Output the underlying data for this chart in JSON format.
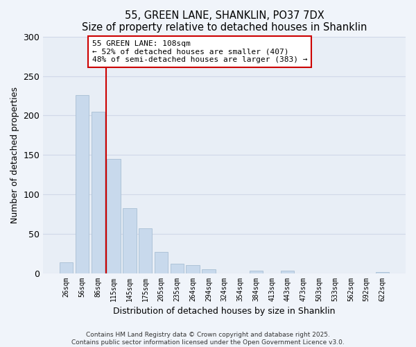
{
  "title": "55, GREEN LANE, SHANKLIN, PO37 7DX",
  "subtitle": "Size of property relative to detached houses in Shanklin",
  "xlabel": "Distribution of detached houses by size in Shanklin",
  "ylabel": "Number of detached properties",
  "bar_labels": [
    "26sqm",
    "56sqm",
    "86sqm",
    "115sqm",
    "145sqm",
    "175sqm",
    "205sqm",
    "235sqm",
    "264sqm",
    "294sqm",
    "324sqm",
    "354sqm",
    "384sqm",
    "413sqm",
    "443sqm",
    "473sqm",
    "503sqm",
    "533sqm",
    "562sqm",
    "592sqm",
    "622sqm"
  ],
  "bar_values": [
    14,
    226,
    205,
    145,
    82,
    57,
    27,
    12,
    10,
    5,
    0,
    0,
    3,
    0,
    3,
    0,
    0,
    0,
    0,
    0,
    1
  ],
  "bar_color": "#c8d9ec",
  "bar_edge_color": "#a8bfd4",
  "vline_color": "#cc0000",
  "ylim": [
    0,
    300
  ],
  "yticks": [
    0,
    50,
    100,
    150,
    200,
    250,
    300
  ],
  "annotation_title": "55 GREEN LANE: 108sqm",
  "annotation_line1": "← 52% of detached houses are smaller (407)",
  "annotation_line2": "48% of semi-detached houses are larger (383) →",
  "footnote1": "Contains HM Land Registry data © Crown copyright and database right 2025.",
  "footnote2": "Contains public sector information licensed under the Open Government Licence v3.0.",
  "bg_color": "#f0f4fa",
  "plot_bg_color": "#e8eef6",
  "grid_color": "#d0d8e8"
}
